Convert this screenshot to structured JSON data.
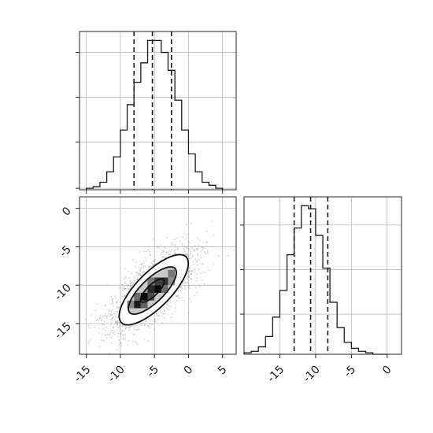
{
  "chart_data": [
    {
      "type": "histogram",
      "panel": "top-left",
      "variable": "x",
      "bins": [
        -15,
        -14,
        -13,
        -12,
        -11,
        -10,
        -9,
        -8,
        -7,
        -6,
        -5,
        -4,
        -3,
        -2,
        -1,
        0,
        1,
        2,
        3,
        4,
        5
      ],
      "counts": [
        0.01,
        0.02,
        0.05,
        0.12,
        0.22,
        0.4,
        0.57,
        0.72,
        0.85,
        1.0,
        1.0,
        0.92,
        0.8,
        0.6,
        0.4,
        0.24,
        0.12,
        0.05,
        0.03,
        0.01
      ],
      "quantiles": [
        -8,
        -5.3,
        -2.5
      ],
      "xlim": [
        -16,
        7
      ],
      "ylim": [
        0,
        1.06
      ],
      "ytick_values": [
        0.01,
        0.32,
        0.62,
        0.92
      ],
      "grid": true,
      "xtick_labels": [],
      "ytick_labels": []
    },
    {
      "type": "histogram",
      "panel": "bottom-right",
      "variable": "y",
      "bins": [
        -20,
        -19,
        -18,
        -17,
        -16,
        -15,
        -14,
        -13,
        -12,
        -11,
        -10,
        -9,
        -8,
        -7,
        -6,
        -5,
        -4,
        -3,
        -2,
        -1,
        0
      ],
      "counts": [
        0.01,
        0.02,
        0.05,
        0.12,
        0.25,
        0.43,
        0.67,
        0.85,
        1.0,
        0.98,
        0.8,
        0.58,
        0.35,
        0.18,
        0.08,
        0.04,
        0.02,
        0.01,
        0.0,
        0.0
      ],
      "quantiles": [
        -13,
        -10.7,
        -8.3
      ],
      "xlim": [
        -20,
        2
      ],
      "ylim": [
        0,
        1.06
      ],
      "ytick_values": [
        0.27,
        0.57,
        0.87
      ],
      "grid": true,
      "xtick_labels": [
        "-15",
        "-10",
        "-5",
        "0"
      ],
      "xtick_values": [
        -15,
        -10,
        -5,
        0
      ],
      "ytick_labels": []
    },
    {
      "type": "heatmap",
      "panel": "bottom-left",
      "variables": [
        "x",
        "y"
      ],
      "correlation": 0.75,
      "xlim": [
        -16,
        7
      ],
      "ylim": [
        -19,
        1.5
      ],
      "grid": true,
      "xtick_labels": [
        "-15",
        "-10",
        "-5",
        "0",
        "5"
      ],
      "xtick_values": [
        -15,
        -10,
        -5,
        0,
        5
      ],
      "ytick_labels": [
        "0",
        "-5",
        "-10",
        "-15"
      ],
      "ytick_values": [
        0,
        -5,
        -10,
        -15
      ],
      "cells": [
        {
          "x": -8,
          "y": -13,
          "w": 1,
          "h": 1,
          "density": 0.9
        },
        {
          "x": -7,
          "y": -12,
          "w": 1,
          "h": 1,
          "density": 1.0
        },
        {
          "x": -6,
          "y": -12,
          "w": 1,
          "h": 1,
          "density": 0.7
        },
        {
          "x": -6,
          "y": -11,
          "w": 1,
          "h": 1,
          "density": 0.85
        },
        {
          "x": -5,
          "y": -11,
          "w": 1,
          "h": 1,
          "density": 1.0
        },
        {
          "x": -5,
          "y": -10,
          "w": 1,
          "h": 1,
          "density": 0.75
        },
        {
          "x": -4,
          "y": -10,
          "w": 1,
          "h": 1,
          "density": 0.8
        },
        {
          "x": -3,
          "y": -9,
          "w": 1,
          "h": 1,
          "density": 0.5
        },
        {
          "x": -8,
          "y": -12,
          "w": 1,
          "h": 1,
          "density": 0.55
        },
        {
          "x": -7,
          "y": -13,
          "w": 1,
          "h": 1,
          "density": 0.6
        },
        {
          "x": -4,
          "y": -11,
          "w": 1,
          "h": 1,
          "density": 0.55
        },
        {
          "x": -6,
          "y": -10,
          "w": 1,
          "h": 1,
          "density": 0.5
        },
        {
          "x": -9,
          "y": -13,
          "w": 1,
          "h": 1,
          "density": 0.45
        },
        {
          "x": -3,
          "y": -10,
          "w": 1,
          "h": 1,
          "density": 0.4
        }
      ],
      "contours": [
        {
          "cx": -5.3,
          "cy": -10.7,
          "rmajor": 2.2,
          "rminor": 0.75,
          "angle_deg": 40
        },
        {
          "cx": -5.3,
          "cy": -10.7,
          "rmajor": 4.4,
          "rminor": 1.6,
          "angle_deg": 40
        },
        {
          "cx": -5.1,
          "cy": -10.6,
          "rmajor": 6.4,
          "rminor": 2.4,
          "angle_deg": 41
        }
      ],
      "scatter_sigma": [
        3.5,
        3.1
      ]
    }
  ]
}
